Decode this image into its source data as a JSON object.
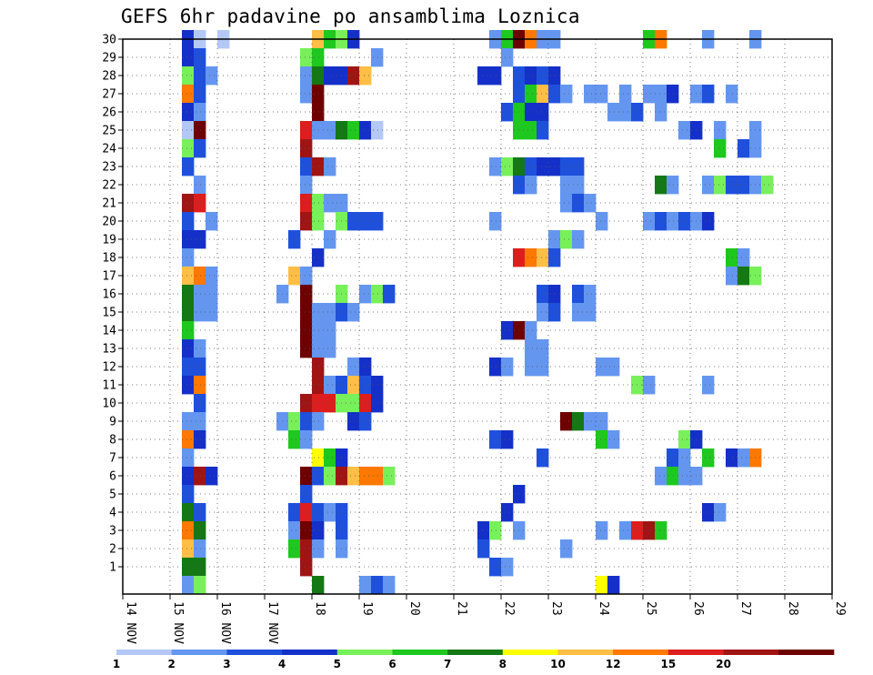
{
  "title": "GEFS 6hr padavine po ansamblima Loznica",
  "chart_data": {
    "type": "heatmap",
    "title": "GEFS 6hr padavine po ansamblima Loznica",
    "xlabel": "",
    "ylabel": "",
    "x_tick_labels": [
      "14 NOV",
      "15 NOV",
      "16 NOV",
      "17 NOV",
      "18",
      "19",
      "20",
      "21",
      "22",
      "23",
      "24",
      "25",
      "26",
      "27",
      "28",
      "29"
    ],
    "x_range_days": [
      14,
      29
    ],
    "x_step_hours": 6,
    "y_tick_labels": [
      "1",
      "2",
      "3",
      "4",
      "5",
      "6",
      "7",
      "8",
      "9",
      "10",
      "11",
      "12",
      "13",
      "14",
      "15",
      "16",
      "17",
      "18",
      "19",
      "20",
      "21",
      "22",
      "23",
      "24",
      "25",
      "26",
      "27",
      "28",
      "29",
      "30"
    ],
    "y_range": [
      0,
      30
    ],
    "grid": "dotted",
    "colorbar": {
      "labels": [
        "1",
        "2",
        "3",
        "4",
        "5",
        "6",
        "7",
        "8",
        "10",
        "12",
        "15",
        "20"
      ],
      "colors": [
        "#b4c8f5",
        "#6496f0",
        "#1e50dc",
        "#1430c8",
        "#78f05a",
        "#1ec81e",
        "#147814",
        "#ffff00",
        "#ffbe46",
        "#ff7800",
        "#dc1e1e",
        "#a01414",
        "#6e0000"
      ]
    },
    "cells": [
      {
        "member": 30,
        "col": [
          5,
          5,
          6,
          8
        ],
        "cls": [
          7,
          3,
          0,
          0
        ]
      },
      {
        "member": 30,
        "col": [
          16,
          17,
          18,
          19
        ],
        "cls": [
          8,
          5,
          4,
          3
        ]
      },
      {
        "member": 30,
        "col": [
          31,
          32,
          33,
          34,
          35,
          36
        ],
        "cls": [
          1,
          5,
          12,
          9,
          1,
          1
        ]
      },
      {
        "member": 30,
        "col": [
          44,
          45,
          49,
          53
        ],
        "cls": [
          5,
          9,
          1,
          1
        ]
      },
      {
        "member": 29,
        "col": [
          5,
          6,
          15,
          16,
          21
        ],
        "cls": [
          3,
          2,
          4,
          5,
          1
        ]
      },
      {
        "member": 29,
        "col": [
          32
        ],
        "cls": [
          1
        ]
      },
      {
        "member": 28,
        "col": [
          5,
          6,
          7,
          15,
          16,
          17,
          18,
          19,
          20
        ],
        "cls": [
          4,
          2,
          1,
          1,
          6,
          3,
          3,
          11,
          8
        ]
      },
      {
        "member": 28,
        "col": [
          30,
          31,
          33,
          34,
          35,
          36
        ],
        "cls": [
          3,
          3,
          2,
          3,
          2,
          3
        ]
      },
      {
        "member": 27,
        "col": [
          5,
          6,
          15,
          16
        ],
        "cls": [
          9,
          2,
          1,
          12
        ]
      },
      {
        "member": 27,
        "col": [
          33,
          34,
          35,
          36,
          37,
          39,
          40,
          42,
          44,
          45,
          46,
          48,
          49,
          51
        ],
        "cls": [
          2,
          5,
          8,
          2,
          1,
          1,
          1,
          1,
          1,
          1,
          3,
          1,
          2,
          1
        ]
      },
      {
        "member": 26,
        "col": [
          5,
          6,
          16,
          32,
          33,
          34,
          35,
          41,
          42,
          43,
          45
        ],
        "cls": [
          3,
          1,
          12,
          2,
          5,
          3,
          3,
          1,
          1,
          2,
          1
        ]
      },
      {
        "member": 25,
        "col": [
          5,
          6
        ],
        "cls": [
          0,
          12
        ]
      },
      {
        "member": 25,
        "col": [
          15,
          16,
          17,
          18,
          19,
          20,
          21
        ],
        "cls": [
          10,
          1,
          1,
          6,
          5,
          3,
          0
        ]
      },
      {
        "member": 25,
        "col": [
          33,
          34,
          35
        ],
        "cls": [
          5,
          5,
          2
        ]
      },
      {
        "member": 25,
        "col": [
          47,
          48,
          50,
          53
        ],
        "cls": [
          1,
          3,
          1,
          1
        ]
      },
      {
        "member": 24,
        "col": [
          5,
          6,
          15,
          50,
          52,
          53
        ],
        "cls": [
          4,
          2,
          11,
          5,
          2,
          1
        ]
      },
      {
        "member": 23,
        "col": [
          5,
          15,
          16,
          17,
          31,
          32,
          33,
          34,
          35,
          36,
          37,
          38
        ],
        "cls": [
          2,
          2,
          11,
          1,
          1,
          4,
          6,
          2,
          3,
          3,
          2,
          2
        ]
      },
      {
        "member": 22,
        "col": [
          6,
          15,
          33,
          34,
          37,
          38,
          45,
          46,
          49,
          50,
          51,
          52,
          53,
          54
        ],
        "cls": [
          1,
          1,
          2,
          1,
          1,
          1,
          6,
          1,
          1,
          4,
          2,
          2,
          1,
          4
        ]
      },
      {
        "member": 21,
        "col": [
          5,
          6,
          15,
          16,
          17,
          18,
          37,
          38,
          39
        ],
        "cls": [
          11,
          10,
          10,
          4,
          1,
          1,
          1,
          2,
          1
        ]
      },
      {
        "member": 20,
        "col": [
          5,
          7,
          15,
          16,
          18,
          19,
          20,
          21,
          31,
          40,
          44,
          45,
          46,
          47,
          48,
          49
        ],
        "cls": [
          2,
          1,
          11,
          4,
          4,
          2,
          2,
          2,
          1,
          1,
          1,
          2,
          1,
          2,
          1,
          3
        ]
      },
      {
        "member": 19,
        "col": [
          5,
          6,
          14,
          17,
          36,
          37,
          38
        ],
        "cls": [
          3,
          3,
          2,
          1,
          1,
          4,
          1
        ]
      },
      {
        "member": 18,
        "col": [
          5,
          16,
          33,
          34,
          35,
          36,
          51,
          52
        ],
        "cls": [
          1,
          3,
          10,
          9,
          8,
          2,
          5,
          1
        ]
      },
      {
        "member": 17,
        "col": [
          5,
          6,
          7,
          14,
          15,
          51,
          52,
          53
        ],
        "cls": [
          8,
          9,
          1,
          8,
          1,
          1,
          6,
          4
        ]
      },
      {
        "member": 16,
        "col": [
          5,
          6,
          7,
          13,
          15,
          18,
          20,
          21,
          22,
          35,
          36,
          38,
          39
        ],
        "cls": [
          6,
          1,
          1,
          1,
          12,
          4,
          1,
          4,
          2,
          2,
          3,
          2,
          1
        ]
      },
      {
        "member": 15,
        "col": [
          5,
          6,
          7,
          15,
          16,
          17,
          18,
          19,
          35,
          36,
          38,
          39
        ],
        "cls": [
          6,
          1,
          1,
          12,
          1,
          1,
          2,
          1,
          1,
          2,
          1,
          1
        ]
      },
      {
        "member": 14,
        "col": [
          5,
          15,
          16,
          17,
          32,
          33,
          34
        ],
        "cls": [
          5,
          12,
          1,
          1,
          3,
          12,
          1
        ]
      },
      {
        "member": 13,
        "col": [
          5,
          6,
          15,
          16,
          17,
          34,
          35
        ],
        "cls": [
          3,
          1,
          12,
          1,
          1,
          1,
          1
        ]
      },
      {
        "member": 12,
        "col": [
          5,
          6,
          16,
          19,
          20,
          31,
          32,
          34,
          35,
          40,
          41
        ],
        "cls": [
          2,
          2,
          11,
          1,
          3,
          3,
          1,
          1,
          1,
          1,
          1
        ]
      },
      {
        "member": 11,
        "col": [
          5,
          6,
          16,
          17,
          18,
          19,
          20,
          21,
          43,
          44,
          49
        ],
        "cls": [
          3,
          9,
          11,
          1,
          2,
          8,
          2,
          3,
          4,
          1,
          1
        ]
      },
      {
        "member": 10,
        "col": [
          6,
          15,
          16,
          17,
          18,
          19,
          20,
          21
        ],
        "cls": [
          2,
          11,
          10,
          10,
          4,
          4,
          10,
          3
        ]
      },
      {
        "member": 9,
        "col": [
          5,
          6,
          13,
          14,
          15,
          16,
          19,
          20,
          37,
          38,
          39,
          40
        ],
        "cls": [
          1,
          1,
          1,
          4,
          2,
          1,
          3,
          2,
          12,
          6,
          1,
          1
        ]
      },
      {
        "member": 8,
        "col": [
          5,
          6,
          14,
          15,
          31,
          32,
          40,
          41,
          47,
          48
        ],
        "cls": [
          9,
          3,
          5,
          1,
          2,
          3,
          5,
          1,
          4,
          3
        ]
      },
      {
        "member": 7,
        "col": [
          5,
          16,
          17,
          18,
          35,
          46,
          47,
          49,
          51,
          52,
          53
        ],
        "cls": [
          1,
          7,
          5,
          3,
          2,
          2,
          1,
          5,
          3,
          1,
          9
        ]
      },
      {
        "member": 6,
        "col": [
          5,
          6,
          7,
          15,
          16,
          17,
          18,
          19,
          20,
          21,
          22
        ],
        "cls": [
          3,
          11,
          3,
          12,
          2,
          4,
          11,
          8,
          9,
          9,
          4
        ]
      },
      {
        "member": 6,
        "col": [
          45,
          46,
          47,
          48
        ],
        "cls": [
          1,
          5,
          1,
          1
        ]
      },
      {
        "member": 5,
        "col": [
          5,
          15,
          33
        ],
        "cls": [
          2,
          2,
          3
        ]
      },
      {
        "member": 4,
        "col": [
          5,
          6,
          14,
          15,
          16,
          17,
          18,
          32,
          49,
          50
        ],
        "cls": [
          6,
          2,
          2,
          10,
          2,
          1,
          2,
          3,
          3,
          1
        ]
      },
      {
        "member": 3,
        "col": [
          5,
          6,
          14,
          15,
          16,
          18,
          30,
          31,
          33,
          40,
          42,
          43,
          44,
          45
        ],
        "cls": [
          9,
          6,
          1,
          12,
          3,
          2,
          3,
          4,
          1,
          1,
          1,
          10,
          11,
          5
        ]
      },
      {
        "member": 2,
        "col": [
          5,
          6,
          14,
          15,
          16,
          18,
          30,
          37
        ],
        "cls": [
          8,
          1,
          5,
          11,
          1,
          1,
          2,
          1
        ]
      },
      {
        "member": 1,
        "col": [
          5,
          6,
          15,
          31,
          32
        ],
        "cls": [
          6,
          6,
          11,
          2,
          1
        ]
      },
      {
        "member": 0,
        "col": [
          5,
          6,
          16,
          20,
          21,
          22,
          40,
          41
        ],
        "cls": [
          1,
          4,
          6,
          1,
          2,
          1,
          7,
          3
        ]
      }
    ]
  }
}
